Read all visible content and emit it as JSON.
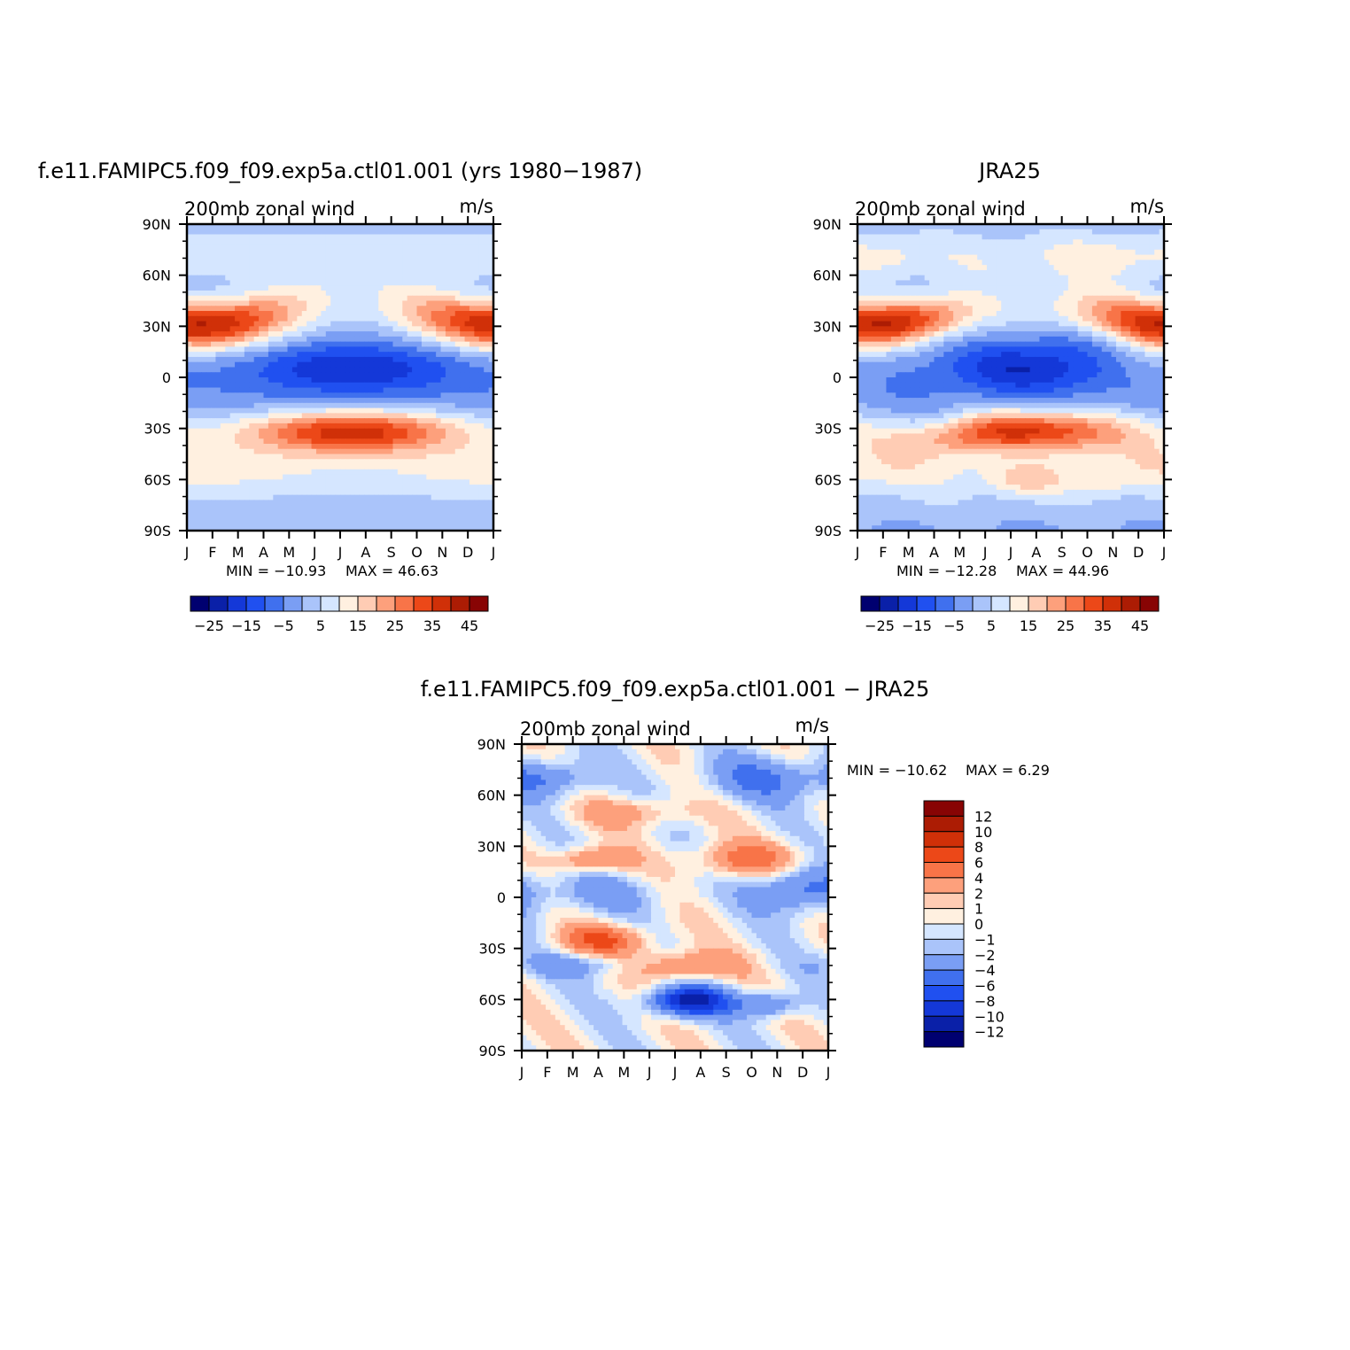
{
  "colors": {
    "scale": [
      "#000070",
      "#0a20a8",
      "#1438d8",
      "#2050f0",
      "#4070ee",
      "#7a9ef4",
      "#aac4fa",
      "#d5e6ff",
      "#fff0e0",
      "#ffccb4",
      "#fda07c",
      "#f87448",
      "#ec4818",
      "#d03008",
      "#ac1c04",
      "#880404"
    ]
  },
  "chart_data": [
    {
      "type": "heatmap",
      "title": "f.e11.FAMIPC5.f09_f09.exp5a.ctl01.001 (yrs 1980−1987)",
      "subtitle": "200mb zonal wind",
      "units": "m/s",
      "x": [
        "J",
        "F",
        "M",
        "A",
        "M",
        "J",
        "J",
        "A",
        "S",
        "O",
        "N",
        "D",
        "J"
      ],
      "y_ticks": [
        "90N",
        "60N",
        "30N",
        "0",
        "30S",
        "60S",
        "90S"
      ],
      "y_range": [
        -90,
        90
      ],
      "min_label": "MIN = −10.93",
      "max_label": "MAX =   46.63",
      "min": -10.93,
      "max": 46.63,
      "levels": [
        -30,
        -25,
        -20,
        -15,
        -10,
        -5,
        0,
        5,
        10,
        15,
        20,
        25,
        30,
        35,
        40,
        45,
        50
      ],
      "colorbar_labels": [
        "−25",
        "−15",
        "−5",
        "5",
        "15",
        "25",
        "35",
        "45"
      ],
      "features": [
        {
          "kind": "NH jet",
          "lat": 30,
          "peak_months": [
            "Jan",
            "Feb",
            "Dec"
          ],
          "max": 46.63
        },
        {
          "kind": "SH jet",
          "lat": -32,
          "peak_months": [
            "Jun",
            "Jul",
            "Aug"
          ],
          "max": 44
        },
        {
          "kind": "tropical easterlies",
          "lat": 5,
          "peak_months": [
            "Jul",
            "Aug"
          ],
          "min": -10.93
        }
      ]
    },
    {
      "type": "heatmap",
      "title": "JRA25",
      "subtitle": "200mb zonal wind",
      "units": "m/s",
      "x": [
        "J",
        "F",
        "M",
        "A",
        "M",
        "J",
        "J",
        "A",
        "S",
        "O",
        "N",
        "D",
        "J"
      ],
      "y_ticks": [
        "90N",
        "60N",
        "30N",
        "0",
        "30S",
        "60S",
        "90S"
      ],
      "y_range": [
        -90,
        90
      ],
      "min_label": "MIN = −12.28",
      "max_label": "MAX =   44.96",
      "min": -12.28,
      "max": 44.96,
      "levels": [
        -30,
        -25,
        -20,
        -15,
        -10,
        -5,
        0,
        5,
        10,
        15,
        20,
        25,
        30,
        35,
        40,
        45,
        50
      ],
      "colorbar_labels": [
        "−25",
        "−15",
        "−5",
        "5",
        "15",
        "25",
        "35",
        "45"
      ],
      "features": [
        {
          "kind": "NH jet",
          "lat": 30,
          "peak_months": [
            "Jan",
            "Feb",
            "Dec"
          ],
          "max": 44.96
        },
        {
          "kind": "SH jet",
          "lat": -30,
          "peak_months": [
            "Jun",
            "Jul",
            "Aug"
          ],
          "max": 42
        },
        {
          "kind": "tropical easterlies",
          "lat": 5,
          "peak_months": [
            "Jul",
            "Aug"
          ],
          "min": -12.28
        }
      ]
    },
    {
      "type": "heatmap",
      "title": "f.e11.FAMIPC5.f09_f09.exp5a.ctl01.001 − JRA25",
      "subtitle": "200mb zonal wind",
      "units": "m/s",
      "x": [
        "J",
        "F",
        "M",
        "A",
        "M",
        "J",
        "J",
        "A",
        "S",
        "O",
        "N",
        "D",
        "J"
      ],
      "y_ticks": [
        "90N",
        "60N",
        "30N",
        "0",
        "30S",
        "60S",
        "90S"
      ],
      "y_range": [
        -90,
        90
      ],
      "min_label": "MIN = −10.62",
      "max_label": "MAX =    6.29",
      "min": -10.62,
      "max": 6.29,
      "levels": [
        -14,
        -12,
        -10,
        -8,
        -6,
        -4,
        -2,
        -1,
        0,
        1,
        2,
        4,
        6,
        8,
        10,
        12,
        14
      ],
      "colorbar_labels": [
        "12",
        "10",
        "8",
        "6",
        "4",
        "2",
        "1",
        "0",
        "−1",
        "−2",
        "−4",
        "−6",
        "−8",
        "−10",
        "−12"
      ],
      "features": [
        {
          "kind": "negative bias",
          "lat": -60,
          "peak_months": [
            "Jul",
            "Aug"
          ],
          "min": -10.62
        },
        {
          "kind": "positive bias",
          "lat": -25,
          "peak_months": [
            "Apr",
            "May"
          ],
          "max": 6.29
        },
        {
          "kind": "positive bias",
          "lat": 22,
          "peak_months": [
            "Mar",
            "Oct"
          ],
          "max": 5
        }
      ]
    }
  ]
}
